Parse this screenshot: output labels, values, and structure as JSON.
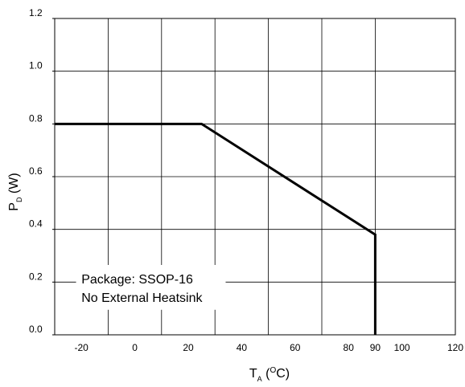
{
  "chart_data": {
    "type": "line",
    "title": "",
    "xlabel": {
      "main": "T",
      "sub": "A",
      "pre": " (",
      "sup": "O",
      "post": "C)"
    },
    "ylabel": {
      "main": "P",
      "sub": "D",
      "post": " (W)"
    },
    "xlim": [
      -30,
      120
    ],
    "ylim": [
      0.0,
      1.2
    ],
    "grid": true,
    "x_gridlines": [
      -30,
      -10,
      10,
      30,
      50,
      70,
      90,
      120
    ],
    "y_gridlines": [
      0.0,
      0.2,
      0.4,
      0.6,
      0.8,
      1.0,
      1.2
    ],
    "x_ticks": [
      {
        "value": -20,
        "label": "-20"
      },
      {
        "value": 0,
        "label": "0"
      },
      {
        "value": 20,
        "label": "20"
      },
      {
        "value": 40,
        "label": "40"
      },
      {
        "value": 60,
        "label": "60"
      },
      {
        "value": 80,
        "label": "80"
      },
      {
        "value": 90,
        "label": "90"
      },
      {
        "value": 100,
        "label": "100"
      },
      {
        "value": 120,
        "label": "120"
      }
    ],
    "y_ticks": [
      {
        "value": 0.0,
        "label": "0.0"
      },
      {
        "value": 0.2,
        "label": "0.2"
      },
      {
        "value": 0.4,
        "label": "0.4"
      },
      {
        "value": 0.6,
        "label": "0.6"
      },
      {
        "value": 0.8,
        "label": "0.8"
      },
      {
        "value": 1.0,
        "label": "1.0"
      },
      {
        "value": 1.2,
        "label": "1.2"
      }
    ],
    "series": [
      {
        "x": [
          -30,
          25,
          90,
          90
        ],
        "y": [
          0.8,
          0.8,
          0.38,
          0.0
        ],
        "color": "#000000"
      }
    ],
    "annotation": [
      "Package: SSOP-16",
      "No External Heatsink"
    ]
  }
}
